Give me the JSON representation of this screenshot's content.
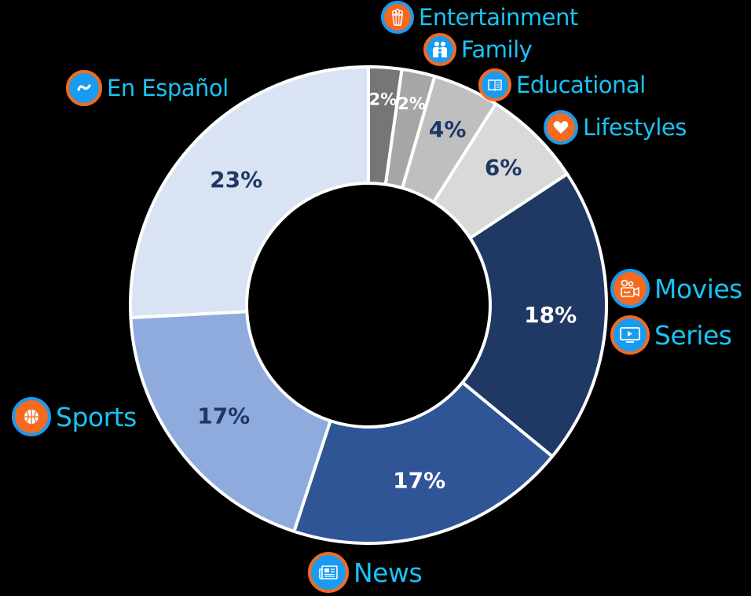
{
  "chart_data": {
    "type": "pie",
    "variant": "donut",
    "title": "",
    "categories": [
      "Entertainment",
      "Family",
      "Educational",
      "Lifestyles",
      "Movies / Series",
      "News",
      "Sports",
      "En Español"
    ],
    "values": [
      2,
      2,
      4,
      6,
      18,
      17,
      17,
      23
    ],
    "value_labels": [
      "2%",
      "2%",
      "4%",
      "6%",
      "18%",
      "17%",
      "17%",
      "23%"
    ],
    "slice_colors": [
      "#767676",
      "#a6a6a6",
      "#bfbfbf",
      "#d9d9d9",
      "#203864",
      "#2f5597",
      "#8faadc",
      "#dae3f3"
    ],
    "label_colors": [
      "#ffffff",
      "#ffffff",
      "#1f3864",
      "#1f3864",
      "#ffffff",
      "#ffffff",
      "#1f3864",
      "#1f3864"
    ],
    "start_angle_deg": 0,
    "direction": "clockwise",
    "legend_position": "around",
    "legend": [
      {
        "label": "Entertainment",
        "icon": "popcorn-icon"
      },
      {
        "label": "Family",
        "icon": "family-icon"
      },
      {
        "label": "Educational",
        "icon": "book-icon"
      },
      {
        "label": "Lifestyles",
        "icon": "heart-icon"
      },
      {
        "label": "Movies",
        "icon": "video-camera-icon"
      },
      {
        "label": "Series",
        "icon": "tv-icon"
      },
      {
        "label": "News",
        "icon": "newspaper-icon"
      },
      {
        "label": "Sports",
        "icon": "basketball-icon"
      },
      {
        "label": "En Español",
        "icon": "tilde-icon"
      }
    ]
  },
  "colors": {
    "legend_text": "#19c3f5",
    "badge_orange": "#f26b21",
    "badge_blue": "#1a9bf2",
    "background": "#000000",
    "separator": "#ffffff"
  },
  "legend_items": {
    "entertainment": "Entertainment",
    "family": "Family",
    "educational": "Educational",
    "lifestyles": "Lifestyles",
    "movies": "Movies",
    "series": "Series",
    "news": "News",
    "sports": "Sports",
    "espanol": "En Español"
  }
}
